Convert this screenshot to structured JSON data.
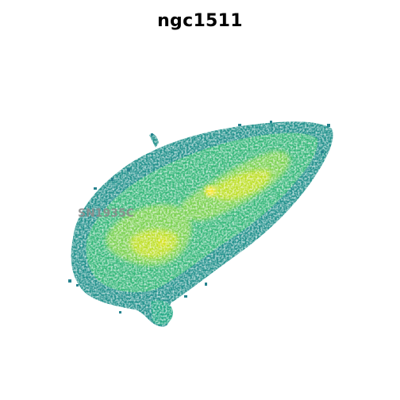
{
  "figure": {
    "title": "ngc1511",
    "annotation": "SN1935C"
  },
  "colors": {
    "background": "#ffffff",
    "title": "#000000",
    "annotation": "#8c8c8c",
    "colormap": [
      "#2a788e",
      "#22a884",
      "#44bf70",
      "#7ad151",
      "#bddf26",
      "#fde725"
    ]
  }
}
